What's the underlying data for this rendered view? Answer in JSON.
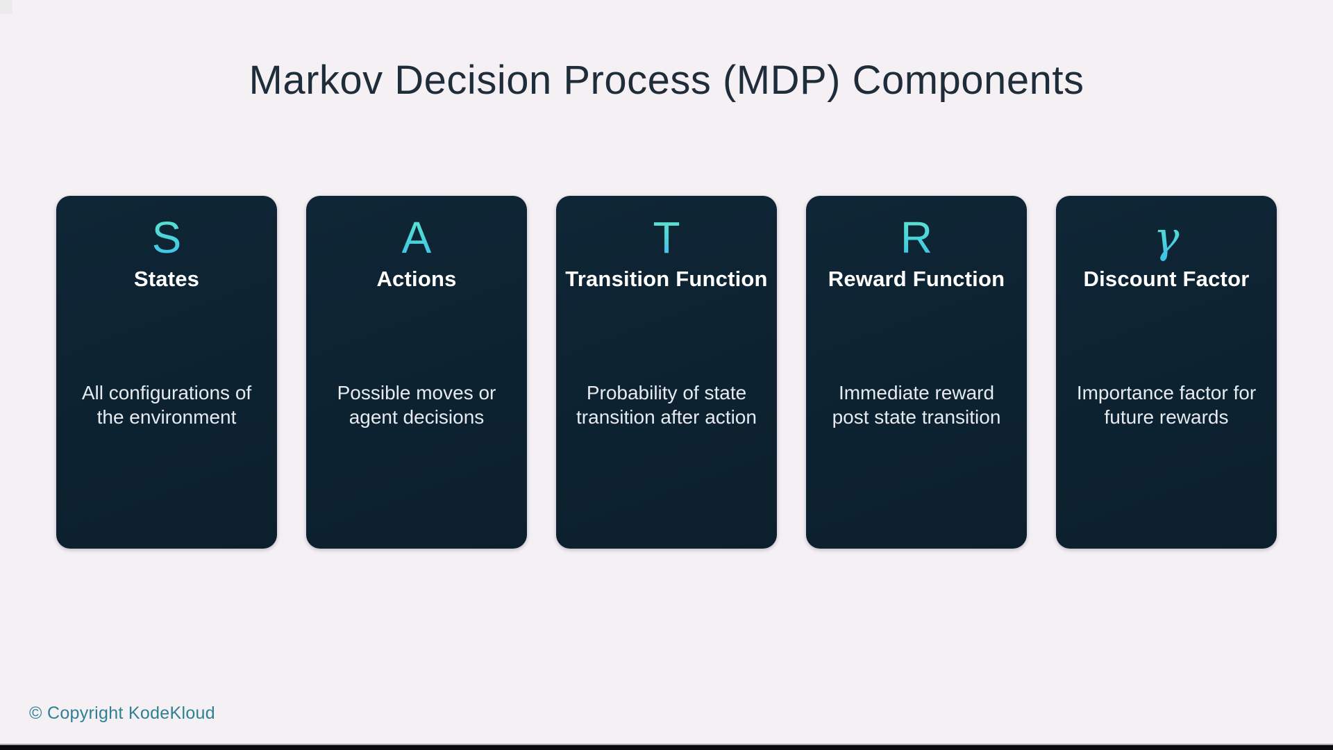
{
  "slide": {
    "title": "Markov Decision Process (MDP) Components",
    "copyright": "© Copyright KodeKloud"
  },
  "cards": [
    {
      "symbol": "S",
      "name": "States",
      "description": "All configurations of\nthe environment"
    },
    {
      "symbol": "A",
      "name": "Actions",
      "description": "Possible moves or\nagent decisions"
    },
    {
      "symbol": "T",
      "name": "Transition Function",
      "description": "Probability of state\ntransition after action"
    },
    {
      "symbol": "R",
      "name": "Reward Function",
      "description": "Immediate reward\npost state transition"
    },
    {
      "symbol": "γ",
      "name": "Discount Factor",
      "description": "Importance factor for\nfuture rewards"
    }
  ],
  "colors": {
    "background": "#f4f0f4",
    "card_background": "#0d2230",
    "symbol_gradient_top": "#62e6c9",
    "symbol_gradient_bottom": "#3abfe9",
    "title_text": "#1f2d3a",
    "card_title_text": "#ffffff",
    "card_description_text": "#e7eaee",
    "copyright_text": "#2e8092"
  }
}
